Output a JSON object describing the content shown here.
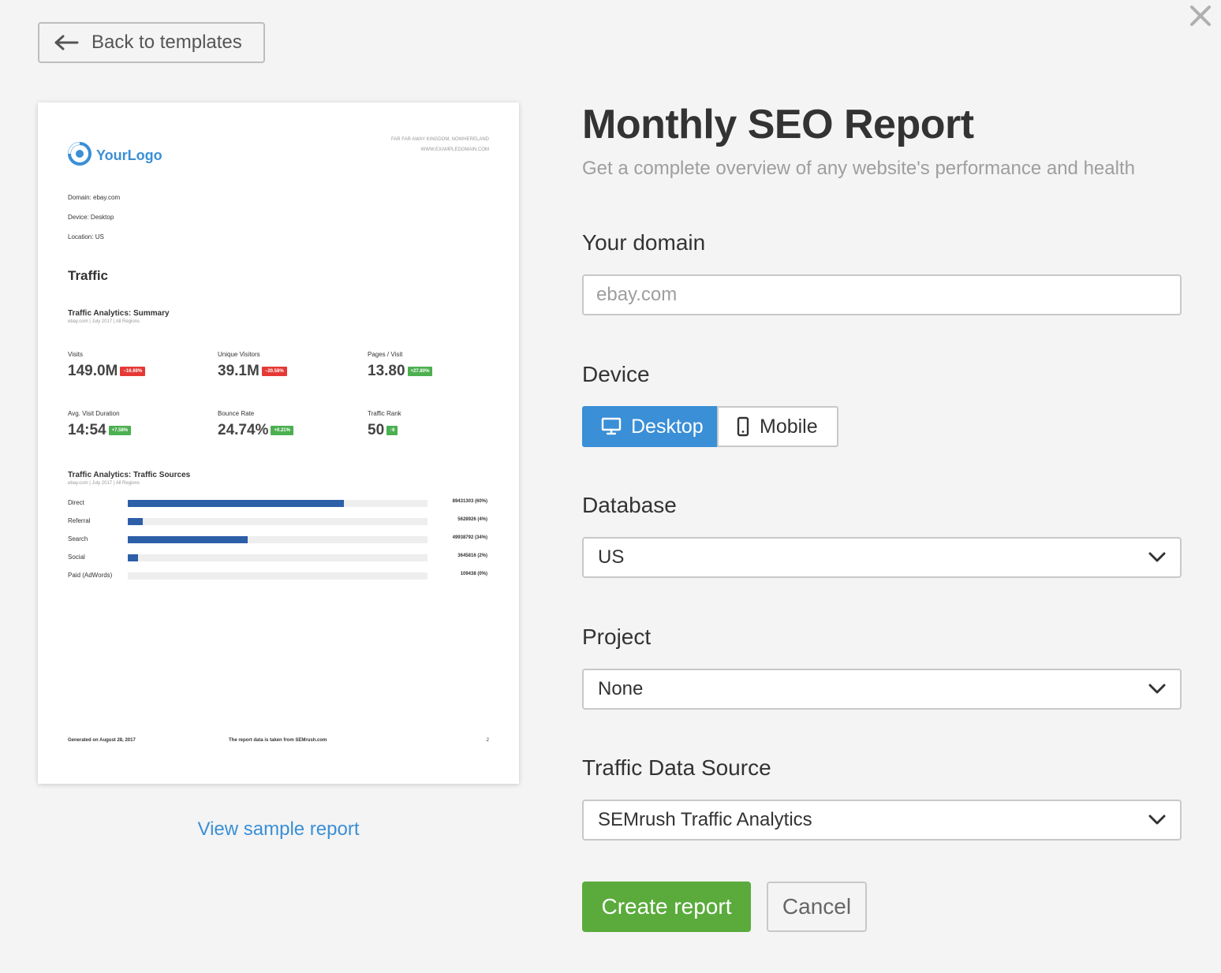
{
  "header": {
    "back_label": "Back to templates",
    "back_icon": "arrow-left-icon",
    "close_icon": "close-icon"
  },
  "preview": {
    "logo_text": "YourLogo",
    "address_line1": "FAR FAR AWAY KINGDOM, NOWHERELAND",
    "address_line2": "WWW.EXAMPLEDOMAIN.COM",
    "meta": [
      {
        "label": "Domain:",
        "value": "ebay.com"
      },
      {
        "label": "Device:",
        "value": "Desktop"
      },
      {
        "label": "Location:",
        "value": "US"
      }
    ],
    "section_title": "Traffic",
    "summary_title": "Traffic Analytics: Summary",
    "summary_sub": "ebay.com | July 2017 | All Regions",
    "metrics": [
      {
        "label": "Visits",
        "value": "149.0M",
        "badge": "−16.69%",
        "badge_type": "negative"
      },
      {
        "label": "Unique Visitors",
        "value": "39.1M",
        "badge": "−20.58%",
        "badge_type": "negative"
      },
      {
        "label": "Pages / Visit",
        "value": "13.80",
        "badge": "+27.80%",
        "badge_type": "positive"
      },
      {
        "label": "Avg. Visit Duration",
        "value": "14:54",
        "badge": "+7.58%",
        "badge_type": "positive"
      },
      {
        "label": "Bounce Rate",
        "value": "24.74%",
        "badge": "+0.21%",
        "badge_type": "positive"
      },
      {
        "label": "Traffic Rank",
        "value": "50",
        "badge": "↑6",
        "badge_type": "positive"
      }
    ],
    "sources_title": "Traffic Analytics: Traffic Sources",
    "sources_sub": "ebay.com | July 2017 | All Regions",
    "sources": [
      {
        "label": "Direct",
        "fraction": 0.72,
        "value": "89431303 (60%)"
      },
      {
        "label": "Referral",
        "fraction": 0.05,
        "value": "5628926 (4%)"
      },
      {
        "label": "Search",
        "fraction": 0.4,
        "value": "49938792 (34%)"
      },
      {
        "label": "Social",
        "fraction": 0.035,
        "value": "3645816 (2%)"
      },
      {
        "label": "Paid (AdWords)",
        "fraction": 0.0,
        "value": "109438 (0%)"
      }
    ],
    "footer_left": "Generated on August 28, 2017",
    "footer_center": "The report data is taken from SEMrush.com",
    "footer_page": "2"
  },
  "view_sample_label": "View sample report",
  "form": {
    "title": "Monthly SEO Report",
    "subtitle": "Get a complete overview of any website's performance and health",
    "domain_label": "Your domain",
    "domain_placeholder": "ebay.com",
    "domain_value": "",
    "device_label": "Device",
    "device_options": [
      {
        "label": "Desktop",
        "icon": "monitor-icon",
        "selected": true
      },
      {
        "label": "Mobile",
        "icon": "phone-icon",
        "selected": false
      }
    ],
    "database_label": "Database",
    "database_value": "US",
    "project_label": "Project",
    "project_value": "None",
    "traffic_label": "Traffic Data Source",
    "traffic_value": "SEMrush Traffic Analytics",
    "create_label": "Create report",
    "cancel_label": "Cancel"
  },
  "colors": {
    "accent_blue": "#3a8fd6",
    "create_green": "#5aab3c",
    "bar_blue": "#2d5fa8",
    "badge_red": "#e53935",
    "badge_green": "#4caf50"
  }
}
